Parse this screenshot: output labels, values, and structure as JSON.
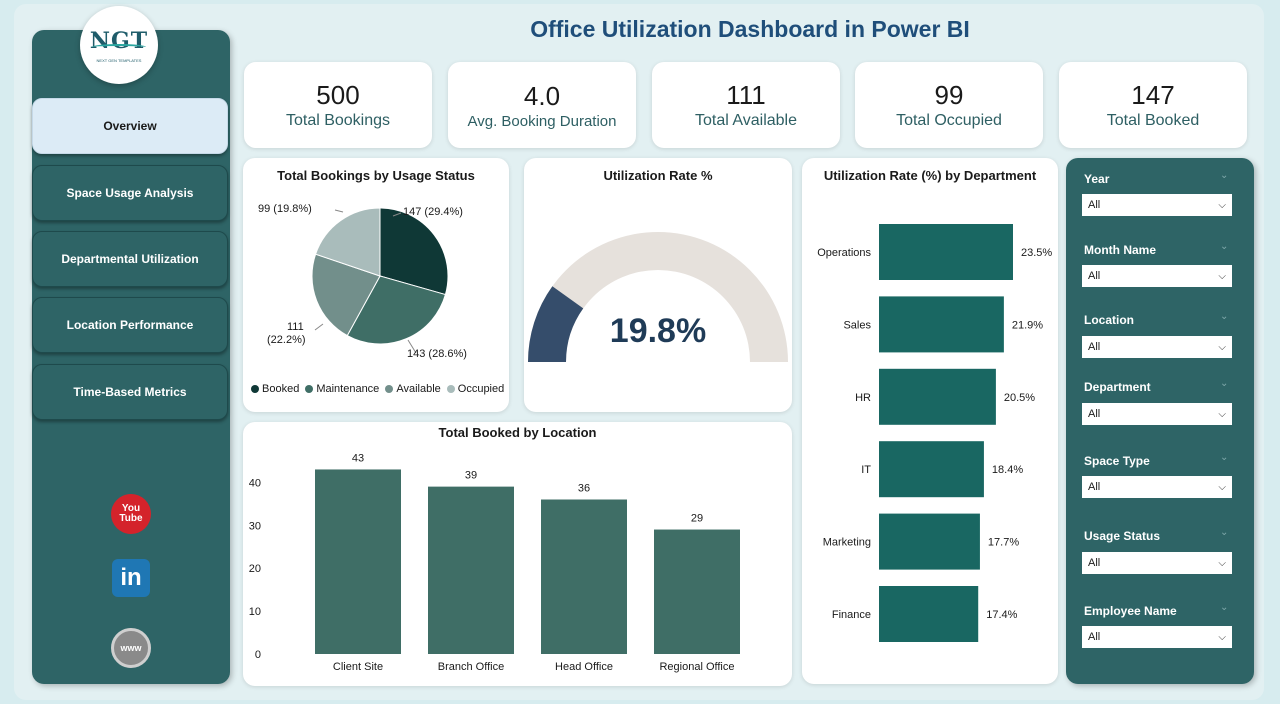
{
  "title": "Office Utilization Dashboard in Power BI",
  "logo": {
    "text": "NGT",
    "subtitle": "NEXT GEN TEMPLATES"
  },
  "nav": [
    {
      "label": "Overview",
      "active": true
    },
    {
      "label": "Space Usage Analysis",
      "active": false
    },
    {
      "label": "Departmental Utilization",
      "active": false
    },
    {
      "label": "Location Performance",
      "active": false
    },
    {
      "label": "Time-Based Metrics",
      "active": false
    }
  ],
  "social": {
    "youtube_top": "You",
    "youtube_bottom": "Tube",
    "linkedin": "in",
    "web": "www"
  },
  "kpis": [
    {
      "value": "500",
      "label": "Total Bookings"
    },
    {
      "value": "4.0",
      "label": "Avg. Booking Duration"
    },
    {
      "value": "111",
      "label": "Total Available"
    },
    {
      "value": "99",
      "label": "Total Occupied"
    },
    {
      "value": "147",
      "label": "Total Booked"
    }
  ],
  "colors": {
    "booked": "#0f3836",
    "maintenance": "#3f6e66",
    "available": "#728f8b",
    "occupied": "#a9bcbb",
    "bar": "#3f6e66",
    "dept_bar": "#196762",
    "gauge_fill": "#354d6b",
    "gauge_track": "#e6e1dc"
  },
  "chart_data": [
    {
      "type": "pie",
      "title": "Total Bookings by Usage Status",
      "slices": [
        {
          "name": "Booked",
          "value": 147,
          "label": "147 (29.4%)"
        },
        {
          "name": "Maintenance",
          "value": 143,
          "label": "143 (28.6%)"
        },
        {
          "name": "Available",
          "value": 111,
          "label_line1": "111",
          "label_line2": "(22.2%)"
        },
        {
          "name": "Occupied",
          "value": 99,
          "label": "99 (19.8%)"
        }
      ],
      "legend": [
        "Booked",
        "Maintenance",
        "Available",
        "Occupied"
      ]
    },
    {
      "type": "gauge",
      "title": "Utilization Rate %",
      "value": 19.8,
      "value_label": "19.8%",
      "min": 0,
      "max": 100
    },
    {
      "type": "bar",
      "orientation": "horizontal",
      "title": "Utilization Rate (%) by Department",
      "categories": [
        "Operations",
        "Sales",
        "HR",
        "IT",
        "Marketing",
        "Finance"
      ],
      "values": [
        23.5,
        21.9,
        20.5,
        18.4,
        17.7,
        17.4
      ],
      "value_labels": [
        "23.5%",
        "21.9%",
        "20.5%",
        "18.4%",
        "17.7%",
        "17.4%"
      ]
    },
    {
      "type": "bar",
      "title": "Total Booked by Location",
      "categories": [
        "Client Site",
        "Branch Office",
        "Head Office",
        "Regional Office"
      ],
      "values": [
        43,
        39,
        36,
        29
      ],
      "value_labels": [
        "43",
        "39",
        "36",
        "29"
      ],
      "yticks": [
        "0",
        "10",
        "20",
        "30",
        "40"
      ],
      "ylim": [
        0,
        48
      ]
    }
  ],
  "slicers": [
    {
      "label": "Year",
      "value": "All"
    },
    {
      "label": "Month Name",
      "value": "All"
    },
    {
      "label": "Location",
      "value": "All"
    },
    {
      "label": "Department",
      "value": "All"
    },
    {
      "label": "Space Type",
      "value": "All"
    },
    {
      "label": "Usage Status",
      "value": "All"
    },
    {
      "label": "Employee Name",
      "value": "All"
    }
  ]
}
